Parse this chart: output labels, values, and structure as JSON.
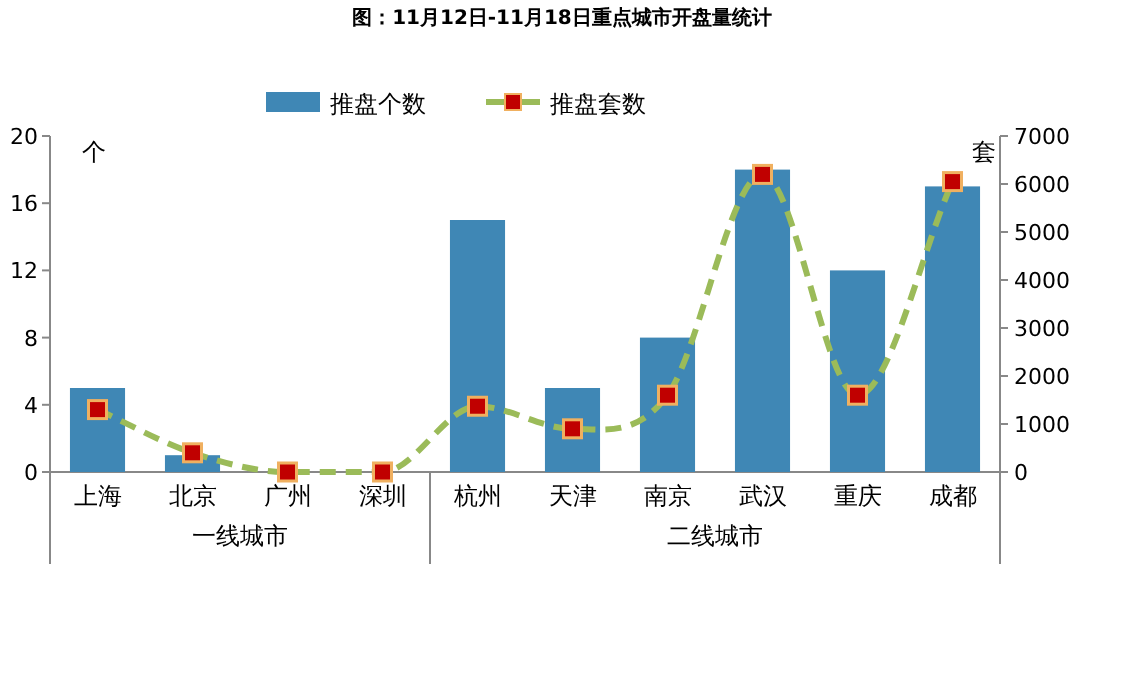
{
  "chart_data": {
    "type": "bar",
    "title": "图：11月12日-11月18日重点城市开盘量统计",
    "ylabel": "个",
    "y2label": "套",
    "categories": [
      "上海",
      "北京",
      "广州",
      "深圳",
      "杭州",
      "天津",
      "南京",
      "武汉",
      "重庆",
      "成都"
    ],
    "series": [
      {
        "name": "推盘个数",
        "color": "#3f87b5",
        "values": [
          5,
          1,
          0,
          0,
          15,
          5,
          8,
          18,
          12,
          17
        ]
      },
      {
        "name": "推盘套数",
        "type": "line",
        "axis": "y2",
        "color": "#9bbb59",
        "marker": "square",
        "line_style": "dashed",
        "values": [
          1300,
          400,
          0,
          0,
          1370,
          900,
          1600,
          6200,
          1600,
          6050
        ]
      }
    ],
    "ylim": [
      0,
      20
    ],
    "yticks": [
      0,
      4,
      8,
      12,
      16,
      20
    ],
    "y2lim": [
      0,
      7000
    ],
    "y2ticks": [
      0,
      1000,
      2000,
      3000,
      4000,
      5000,
      6000,
      7000
    ],
    "annotations": [
      "一线城市",
      "二线城市"
    ],
    "legend": "top",
    "grid": false
  }
}
